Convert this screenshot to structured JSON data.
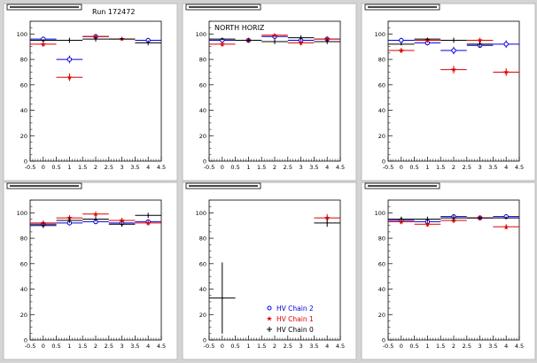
{
  "run_label": "Run 172472",
  "colors": {
    "chain2": "#0000dd",
    "chain1": "#dd0000",
    "chain0": "#000000",
    "pad_bg": "#ffffff",
    "canvas_bg": "#d4d4d4"
  },
  "legend": [
    {
      "key": "chain2",
      "label": "HV Chain 2",
      "marker": "circle"
    },
    {
      "key": "chain1",
      "label": "HV Chain 1",
      "marker": "star"
    },
    {
      "key": "chain0",
      "label": "HV Chain 0",
      "marker": "plus"
    }
  ],
  "chart_data": [
    {
      "type": "scatter",
      "title": "",
      "annotation": "",
      "xlim": [
        -0.5,
        4.5
      ],
      "ylim": [
        0,
        110
      ],
      "xticks": [
        "-0.5",
        "0",
        "0.5",
        "1",
        "1.5",
        "2",
        "2.5",
        "3",
        "3.5",
        "4",
        "4.5"
      ],
      "yticks": [
        "0",
        "20",
        "40",
        "60",
        "80",
        "100"
      ],
      "series": [
        {
          "key": "chain2",
          "points": [
            {
              "x": 0,
              "y": 96,
              "yerr": 2
            },
            {
              "x": 1,
              "y": 80,
              "yerr": 3
            },
            {
              "x": 2,
              "y": 98,
              "yerr": 2
            },
            {
              "x": 4,
              "y": 95,
              "yerr": 2
            }
          ]
        },
        {
          "key": "chain1",
          "points": [
            {
              "x": 0,
              "y": 92,
              "yerr": 2
            },
            {
              "x": 1,
              "y": 66,
              "yerr": 3
            },
            {
              "x": 2,
              "y": 98,
              "yerr": 2
            },
            {
              "x": 3,
              "y": 96,
              "yerr": 1
            }
          ]
        },
        {
          "key": "chain0",
          "points": [
            {
              "x": 0,
              "y": 95,
              "yerr": 1
            },
            {
              "x": 1,
              "y": 95,
              "yerr": 2
            },
            {
              "x": 2,
              "y": 96,
              "yerr": 2
            },
            {
              "x": 3,
              "y": 96,
              "yerr": 1
            },
            {
              "x": 4,
              "y": 93,
              "yerr": 2
            }
          ]
        }
      ]
    },
    {
      "type": "scatter",
      "title": "",
      "annotation": "NORTH HORIZ",
      "xlim": [
        -0.5,
        4.5
      ],
      "ylim": [
        0,
        110
      ],
      "xticks": [
        "-0.5",
        "0",
        "0.5",
        "1",
        "1.5",
        "2",
        "2.5",
        "3",
        "3.5",
        "4",
        "4.5"
      ],
      "yticks": [
        "0",
        "20",
        "40",
        "60",
        "80",
        "100"
      ],
      "series": [
        {
          "key": "chain2",
          "points": [
            {
              "x": 0,
              "y": 95,
              "yerr": 2
            },
            {
              "x": 1,
              "y": 95,
              "yerr": 2
            },
            {
              "x": 2,
              "y": 98,
              "yerr": 2
            },
            {
              "x": 3,
              "y": 95,
              "yerr": 2
            },
            {
              "x": 4,
              "y": 96,
              "yerr": 2
            }
          ]
        },
        {
          "key": "chain1",
          "points": [
            {
              "x": 0,
              "y": 92,
              "yerr": 2
            },
            {
              "x": 1,
              "y": 95,
              "yerr": 2
            },
            {
              "x": 2,
              "y": 99,
              "yerr": 1
            },
            {
              "x": 3,
              "y": 93,
              "yerr": 2
            },
            {
              "x": 4,
              "y": 96,
              "yerr": 2
            }
          ]
        },
        {
          "key": "chain0",
          "points": [
            {
              "x": 0,
              "y": 96,
              "yerr": 1
            },
            {
              "x": 1,
              "y": 95,
              "yerr": 1
            },
            {
              "x": 2,
              "y": 94,
              "yerr": 2
            },
            {
              "x": 3,
              "y": 97,
              "yerr": 2
            },
            {
              "x": 4,
              "y": 94,
              "yerr": 2
            }
          ]
        }
      ]
    },
    {
      "type": "scatter",
      "title": "",
      "annotation": "",
      "xlim": [
        -0.5,
        4.5
      ],
      "ylim": [
        0,
        110
      ],
      "xticks": [
        "-0.5",
        "0",
        "0.5",
        "1",
        "1.5",
        "2",
        "2.5",
        "3",
        "3.5",
        "4",
        "4.5"
      ],
      "yticks": [
        "0",
        "20",
        "40",
        "60",
        "80",
        "100"
      ],
      "series": [
        {
          "key": "chain2",
          "points": [
            {
              "x": 0,
              "y": 95,
              "yerr": 2
            },
            {
              "x": 1,
              "y": 93,
              "yerr": 2
            },
            {
              "x": 2,
              "y": 87,
              "yerr": 3
            },
            {
              "x": 3,
              "y": 91,
              "yerr": 2
            },
            {
              "x": 4,
              "y": 92,
              "yerr": 3
            }
          ]
        },
        {
          "key": "chain1",
          "points": [
            {
              "x": 0,
              "y": 87,
              "yerr": 2
            },
            {
              "x": 1,
              "y": 95,
              "yerr": 2
            },
            {
              "x": 2,
              "y": 72,
              "yerr": 3
            },
            {
              "x": 3,
              "y": 95,
              "yerr": 2
            },
            {
              "x": 4,
              "y": 70,
              "yerr": 3
            }
          ]
        },
        {
          "key": "chain0",
          "points": [
            {
              "x": 0,
              "y": 92,
              "yerr": 1
            },
            {
              "x": 1,
              "y": 96,
              "yerr": 1
            },
            {
              "x": 2,
              "y": 95,
              "yerr": 2
            },
            {
              "x": 3,
              "y": 92,
              "yerr": 2
            }
          ]
        }
      ]
    },
    {
      "type": "scatter",
      "title": "",
      "annotation": "",
      "xlim": [
        -0.5,
        4.5
      ],
      "ylim": [
        0,
        110
      ],
      "xticks": [
        "-0.5",
        "0",
        "0.5",
        "1",
        "1.5",
        "2",
        "2.5",
        "3",
        "3.5",
        "4",
        "4.5"
      ],
      "yticks": [
        "0",
        "20",
        "40",
        "60",
        "80",
        "100"
      ],
      "series": [
        {
          "key": "chain2",
          "points": [
            {
              "x": 0,
              "y": 91,
              "yerr": 2
            },
            {
              "x": 1,
              "y": 92,
              "yerr": 2
            },
            {
              "x": 2,
              "y": 93,
              "yerr": 2
            },
            {
              "x": 3,
              "y": 92,
              "yerr": 2
            },
            {
              "x": 4,
              "y": 93,
              "yerr": 2
            }
          ]
        },
        {
          "key": "chain1",
          "points": [
            {
              "x": 0,
              "y": 92,
              "yerr": 2
            },
            {
              "x": 1,
              "y": 96,
              "yerr": 2
            },
            {
              "x": 2,
              "y": 99,
              "yerr": 2
            },
            {
              "x": 3,
              "y": 94,
              "yerr": 2
            },
            {
              "x": 4,
              "y": 92,
              "yerr": 2
            }
          ]
        },
        {
          "key": "chain0",
          "points": [
            {
              "x": 0,
              "y": 90,
              "yerr": 2
            },
            {
              "x": 1,
              "y": 94,
              "yerr": 2
            },
            {
              "x": 2,
              "y": 95,
              "yerr": 2
            },
            {
              "x": 3,
              "y": 91,
              "yerr": 2
            },
            {
              "x": 4,
              "y": 98,
              "yerr": 2
            }
          ]
        }
      ]
    },
    {
      "type": "scatter",
      "title": "",
      "annotation": "",
      "xlim": [
        -0.5,
        4.5
      ],
      "ylim": [
        0,
        110
      ],
      "xticks": [
        "-0.5",
        "0",
        "0.5",
        "1",
        "1.5",
        "2",
        "2.5",
        "3",
        "3.5",
        "4",
        "4.5"
      ],
      "yticks": [
        "0",
        "20",
        "40",
        "60",
        "80",
        "100"
      ],
      "show_legend": true,
      "series": [
        {
          "key": "chain2",
          "points": []
        },
        {
          "key": "chain1",
          "points": [
            {
              "x": 4,
              "y": 96,
              "yerr": 3
            }
          ]
        },
        {
          "key": "chain0",
          "points": [
            {
              "x": 0,
              "y": 33,
              "yerr": 28
            },
            {
              "x": 4,
              "y": 92,
              "yerr": 3
            }
          ]
        }
      ]
    },
    {
      "type": "scatter",
      "title": "",
      "annotation": "",
      "xlim": [
        -0.5,
        4.5
      ],
      "ylim": [
        0,
        110
      ],
      "xticks": [
        "-0.5",
        "0",
        "0.5",
        "1",
        "1.5",
        "2",
        "2.5",
        "3",
        "3.5",
        "4",
        "4.5"
      ],
      "yticks": [
        "0",
        "20",
        "40",
        "60",
        "80",
        "100"
      ],
      "series": [
        {
          "key": "chain2",
          "points": [
            {
              "x": 0,
              "y": 94,
              "yerr": 2
            },
            {
              "x": 1,
              "y": 93,
              "yerr": 2
            },
            {
              "x": 2,
              "y": 97,
              "yerr": 2
            },
            {
              "x": 3,
              "y": 96,
              "yerr": 2
            },
            {
              "x": 4,
              "y": 97,
              "yerr": 2
            }
          ]
        },
        {
          "key": "chain1",
          "points": [
            {
              "x": 0,
              "y": 93,
              "yerr": 2
            },
            {
              "x": 1,
              "y": 91,
              "yerr": 2
            },
            {
              "x": 2,
              "y": 94,
              "yerr": 2
            },
            {
              "x": 3,
              "y": 96,
              "yerr": 2
            },
            {
              "x": 4,
              "y": 89,
              "yerr": 2
            }
          ]
        },
        {
          "key": "chain0",
          "points": [
            {
              "x": 0,
              "y": 95,
              "yerr": 2
            },
            {
              "x": 1,
              "y": 95,
              "yerr": 2
            },
            {
              "x": 2,
              "y": 96,
              "yerr": 2
            },
            {
              "x": 3,
              "y": 96,
              "yerr": 1
            },
            {
              "x": 4,
              "y": 96,
              "yerr": 1
            }
          ]
        }
      ]
    }
  ]
}
